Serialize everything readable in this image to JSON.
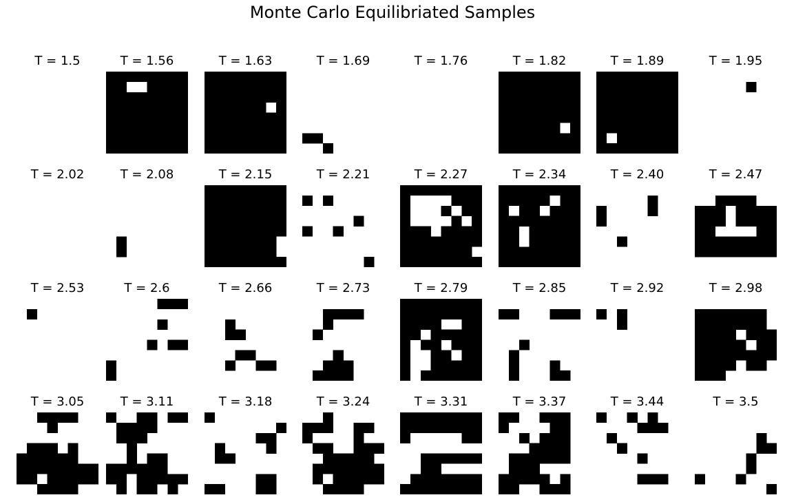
{
  "title": "Monte Carlo Equilibriated Samples",
  "colors": {
    "spin_up": "#ffffff",
    "spin_down": "#000000"
  },
  "chart_data": {
    "type": "heatmap",
    "title": "Monte Carlo Equilibriated Samples",
    "grid_shape": [
      8,
      8
    ],
    "layout": {
      "rows": 4,
      "cols": 8
    },
    "value_legend": {
      "0": "white",
      "1": "black"
    },
    "panels": [
      {
        "label": "T = 1.5",
        "T": 1.5,
        "grid": [
          "00000000",
          "00000000",
          "00000000",
          "00000000",
          "00000000",
          "00000000",
          "00000000",
          "00000000"
        ]
      },
      {
        "label": "T = 1.56",
        "T": 1.56,
        "grid": [
          "11111111",
          "11001111",
          "11111111",
          "11111111",
          "11111111",
          "11111111",
          "11111111",
          "11111111"
        ]
      },
      {
        "label": "T = 1.63",
        "T": 1.63,
        "grid": [
          "11111111",
          "11111111",
          "11111111",
          "11111101",
          "11111111",
          "11111111",
          "11111111",
          "11111111"
        ]
      },
      {
        "label": "T = 1.69",
        "T": 1.69,
        "grid": [
          "00000000",
          "00000000",
          "00000000",
          "00000000",
          "00000000",
          "00000000",
          "11000000",
          "00100000"
        ]
      },
      {
        "label": "T = 1.76",
        "T": 1.76,
        "grid": [
          "00000000",
          "00000000",
          "00000000",
          "00000000",
          "00000000",
          "00000000",
          "00000000",
          "00000000"
        ]
      },
      {
        "label": "T = 1.82",
        "T": 1.82,
        "grid": [
          "11111111",
          "11111111",
          "11111111",
          "11111111",
          "11111111",
          "11111101",
          "11111111",
          "11111111"
        ]
      },
      {
        "label": "T = 1.89",
        "T": 1.89,
        "grid": [
          "11111111",
          "11111111",
          "11111111",
          "11111111",
          "11111111",
          "11111111",
          "10111111",
          "11111111"
        ]
      },
      {
        "label": "T = 1.95",
        "T": 1.95,
        "grid": [
          "00000000",
          "00000100",
          "00000000",
          "00000000",
          "00000000",
          "00000000",
          "00000000",
          "00000000"
        ]
      },
      {
        "label": "T = 2.02",
        "T": 2.02,
        "grid": [
          "00000000",
          "00000000",
          "00000000",
          "00000000",
          "00000000",
          "00000000",
          "00000000",
          "00000000"
        ]
      },
      {
        "label": "T = 2.08",
        "T": 2.08,
        "grid": [
          "00000000",
          "00000000",
          "00000000",
          "00000000",
          "00000000",
          "01000000",
          "01000000",
          "00000000"
        ]
      },
      {
        "label": "T = 2.15",
        "T": 2.15,
        "grid": [
          "11111111",
          "11111111",
          "11111111",
          "11111111",
          "11111111",
          "11111110",
          "11111110",
          "11111111"
        ]
      },
      {
        "label": "T = 2.21",
        "T": 2.21,
        "grid": [
          "00000000",
          "10100000",
          "00000000",
          "00000100",
          "10010000",
          "00000000",
          "00000000",
          "00000010"
        ]
      },
      {
        "label": "T = 2.27",
        "T": 2.27,
        "grid": [
          "11111111",
          "10000111",
          "10001011",
          "10000101",
          "11101111",
          "11111111",
          "11111110",
          "11111111"
        ]
      },
      {
        "label": "T = 2.34",
        "T": 2.34,
        "grid": [
          "11111111",
          "11111011",
          "10110111",
          "11111111",
          "11011111",
          "11011111",
          "11111111",
          "11111111"
        ]
      },
      {
        "label": "T = 2.40",
        "T": 2.4,
        "grid": [
          "00000000",
          "00000100",
          "10000100",
          "10000000",
          "00000000",
          "00100000",
          "00000000",
          "00000000"
        ]
      },
      {
        "label": "T = 2.47",
        "T": 2.47,
        "grid": [
          "00000000",
          "00111100",
          "11101111",
          "11101111",
          "11000011",
          "11111111",
          "11111111",
          "00000000"
        ]
      },
      {
        "label": "T = 2.53",
        "T": 2.53,
        "grid": [
          "00000000",
          "01000000",
          "00000000",
          "00000000",
          "00000000",
          "00000000",
          "00000000",
          "00000000"
        ]
      },
      {
        "label": "T = 2.6",
        "T": 2.6,
        "grid": [
          "00000111",
          "00000000",
          "00000100",
          "00000000",
          "00001011",
          "00000000",
          "10000000",
          "10000000"
        ]
      },
      {
        "label": "T = 2.66",
        "T": 2.66,
        "grid": [
          "00000000",
          "00000000",
          "00100000",
          "00110000",
          "00000000",
          "00011000",
          "00100110",
          "00000000"
        ]
      },
      {
        "label": "T = 2.73",
        "T": 2.73,
        "grid": [
          "00000000",
          "00111100",
          "00100000",
          "01000000",
          "00000000",
          "00010000",
          "00111000",
          "01111000"
        ]
      },
      {
        "label": "T = 2.79",
        "T": 2.79,
        "grid": [
          "11111111",
          "11111111",
          "11110011",
          "11011111",
          "10110111",
          "10011011",
          "10011111",
          "10111111"
        ]
      },
      {
        "label": "T = 2.85",
        "T": 2.85,
        "grid": [
          "00000000",
          "11000111",
          "00000000",
          "00000000",
          "00100000",
          "01000000",
          "01000100",
          "01000110"
        ]
      },
      {
        "label": "T = 2.92",
        "T": 2.92,
        "grid": [
          "00000000",
          "10100000",
          "00100000",
          "00000000",
          "00000000",
          "00000000",
          "00000000",
          "00000000"
        ]
      },
      {
        "label": "T = 2.98",
        "T": 2.98,
        "grid": [
          "00000000",
          "11111110",
          "11111110",
          "11110111",
          "11111011",
          "11111111",
          "11110110",
          "11100000"
        ]
      },
      {
        "label": "T = 3.05",
        "T": 3.05,
        "grid": [
          "00111100",
          "00010000",
          "00000000",
          "01110100",
          "11111100",
          "11111111",
          "11011111",
          "00111100"
        ]
      },
      {
        "label": "T = 3.11",
        "T": 3.11,
        "grid": [
          "10011011",
          "01111000",
          "01110000",
          "00100000",
          "00101100",
          "11111100",
          "11011111",
          "01011010"
        ]
      },
      {
        "label": "T = 3.18",
        "T": 3.18,
        "grid": [
          "10000000",
          "00000001",
          "00000110",
          "01000010",
          "01100000",
          "00000000",
          "00000110",
          "11000110"
        ]
      },
      {
        "label": "T = 3.24",
        "T": 3.24,
        "grid": [
          "00100000",
          "11100110",
          "10000100",
          "01100111",
          "00111110",
          "01111111",
          "01011111",
          "00111100"
        ]
      },
      {
        "label": "T = 3.31",
        "T": 3.31,
        "grid": [
          "11111111",
          "11111111",
          "10000011",
          "00000000",
          "00111111",
          "00110000",
          "01111111",
          "11111111"
        ]
      },
      {
        "label": "T = 3.37",
        "T": 3.37,
        "grid": [
          "11001110",
          "10000110",
          "00101110",
          "00011110",
          "01111110",
          "01110000",
          "11111010",
          "11001110"
        ]
      },
      {
        "label": "T = 3.44",
        "T": 3.44,
        "grid": [
          "10010100",
          "00001110",
          "01000000",
          "00100000",
          "00001000",
          "00000000",
          "00001110",
          "00000000"
        ]
      },
      {
        "label": "T = 3.5",
        "T": 3.5,
        "grid": [
          "00000000",
          "00000000",
          "00000010",
          "00000011",
          "00000100",
          "00000100",
          "10001000",
          "00000001"
        ]
      }
    ]
  }
}
